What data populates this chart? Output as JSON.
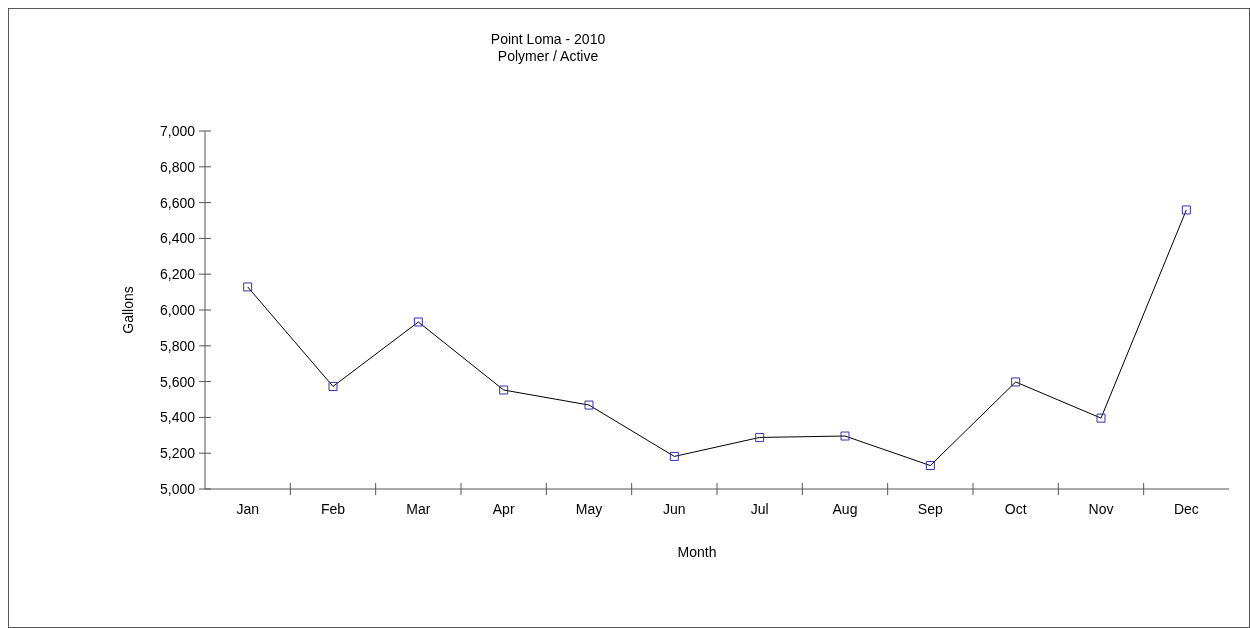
{
  "chart_data": {
    "type": "line",
    "title": "Point Loma - 2010",
    "subtitle": "Polymer / Active",
    "xlabel": "Month",
    "ylabel": "Gallons",
    "categories": [
      "Jan",
      "Feb",
      "Mar",
      "Apr",
      "May",
      "Jun",
      "Jul",
      "Aug",
      "Sep",
      "Oct",
      "Nov",
      "Dec"
    ],
    "series": [
      {
        "color": "#000000",
        "values": [
          6129,
          5573,
          5933,
          5553,
          5469,
          5182,
          5288,
          5296,
          5131,
          5598,
          5396,
          6559
        ]
      }
    ],
    "ylim": [
      5000,
      7000
    ],
    "yticks": [
      {
        "value": 5000,
        "label": "5,000"
      },
      {
        "value": 5200,
        "label": "5,200"
      },
      {
        "value": 5400,
        "label": "5,400"
      },
      {
        "value": 5600,
        "label": "5,600"
      },
      {
        "value": 5800,
        "label": "5,800"
      },
      {
        "value": 6000,
        "label": "6,000"
      },
      {
        "value": 6200,
        "label": "6,200"
      },
      {
        "value": 6400,
        "label": "6,400"
      },
      {
        "value": 6600,
        "label": "6,600"
      },
      {
        "value": 6800,
        "label": "6,800"
      },
      {
        "value": 7000,
        "label": "7,000"
      }
    ],
    "grid": false,
    "marker": "square",
    "line_style": "solid"
  }
}
